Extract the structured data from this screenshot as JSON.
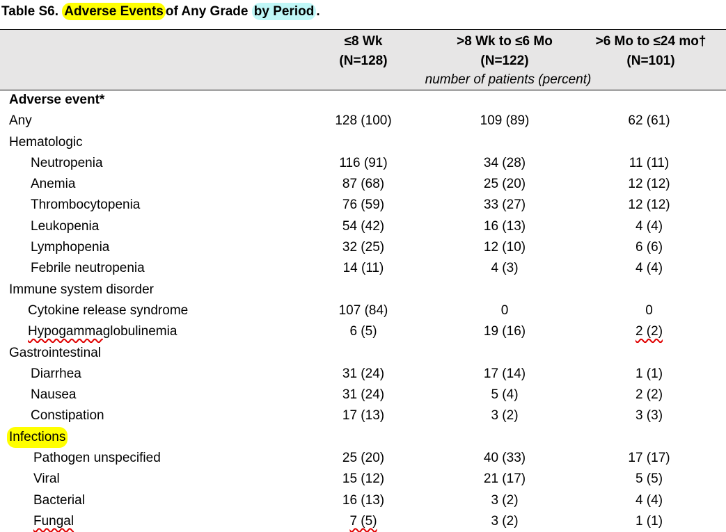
{
  "title": {
    "prefix": "Table S6.",
    "highlight1": "Adverse Events",
    "middle": "of Any Grade",
    "highlight2": "by Period",
    "suffix": "."
  },
  "columns": [
    {
      "line1": "≤8 Wk",
      "line2": "(N=128)"
    },
    {
      "line1": ">8 Wk to ≤6 Mo",
      "line2": "(N=122)"
    },
    {
      "line1": ">6 Mo to ≤24 mo†",
      "line2": "(N=101)"
    }
  ],
  "units_label": "number of patients (percent)",
  "section_header": "Adverse event*",
  "rows": [
    {
      "label": "Any",
      "v1": "128 (100)",
      "v2": "109 (89)",
      "v3": "62 (61)"
    },
    {
      "label": "Hematologic",
      "v1": "",
      "v2": "",
      "v3": ""
    },
    {
      "label": "Neutropenia",
      "v1": "116 (91)",
      "v2": "34 (28)",
      "v3": "11 (11)"
    },
    {
      "label": "Anemia",
      "v1": "87 (68)",
      "v2": "25 (20)",
      "v3": "12 (12)"
    },
    {
      "label": "Thrombocytopenia",
      "v1": "76 (59)",
      "v2": "33 (27)",
      "v3": "12 (12)"
    },
    {
      "label": "Leukopenia",
      "v1": "54 (42)",
      "v2": "16 (13)",
      "v3": "4 (4)"
    },
    {
      "label": "Lymphopenia",
      "v1": "32 (25)",
      "v2": "12 (10)",
      "v3": "6 (6)"
    },
    {
      "label": "Febrile neutropenia",
      "v1": "14 (11)",
      "v2": "4 (3)",
      "v3": "4 (4)"
    },
    {
      "label": "Immune system disorder",
      "v1": "",
      "v2": "",
      "v3": ""
    },
    {
      "label": "Cytokine release syndrome",
      "v1": "107 (84)",
      "v2": "0",
      "v3": "0"
    },
    {
      "label_underlined": "Hypogamma",
      "label_rest": "globulinemia",
      "v1": "6 (5)",
      "v2": "19 (16)",
      "v3": "2 (2)"
    },
    {
      "label": "Gastrointestinal",
      "v1": "",
      "v2": "",
      "v3": ""
    },
    {
      "label": "Diarrhea",
      "v1": "31 (24)",
      "v2": "17 (14)",
      "v3": "1 (1)"
    },
    {
      "label": "Nausea",
      "v1": "31 (24)",
      "v2": "5 (4)",
      "v3": "2 (2)"
    },
    {
      "label": "Constipation",
      "v1": "17 (13)",
      "v2": "3 (2)",
      "v3": "3 (3)"
    },
    {
      "label": "Infections",
      "v1": "",
      "v2": "",
      "v3": ""
    },
    {
      "label": "Pathogen unspecified",
      "v1": "25 (20)",
      "v2": "40 (33)",
      "v3": "17 (17)"
    },
    {
      "label": "Viral",
      "v1": "15 (12)",
      "v2": "21 (17)",
      "v3": "5 (5)"
    },
    {
      "label": "Bacterial",
      "v1": "16 (13)",
      "v2": "3 (2)",
      "v3": "4 (4)"
    },
    {
      "label": "Fungal",
      "v1": "7 (5)",
      "v2": "3 (2)",
      "v3": "1 (1)"
    }
  ],
  "colors": {
    "highlight_yellow": "#ffff00",
    "highlight_cyan": "#bff7f7",
    "header_band": "#e7e6e6",
    "spellcheck_underline": "#e00000"
  }
}
